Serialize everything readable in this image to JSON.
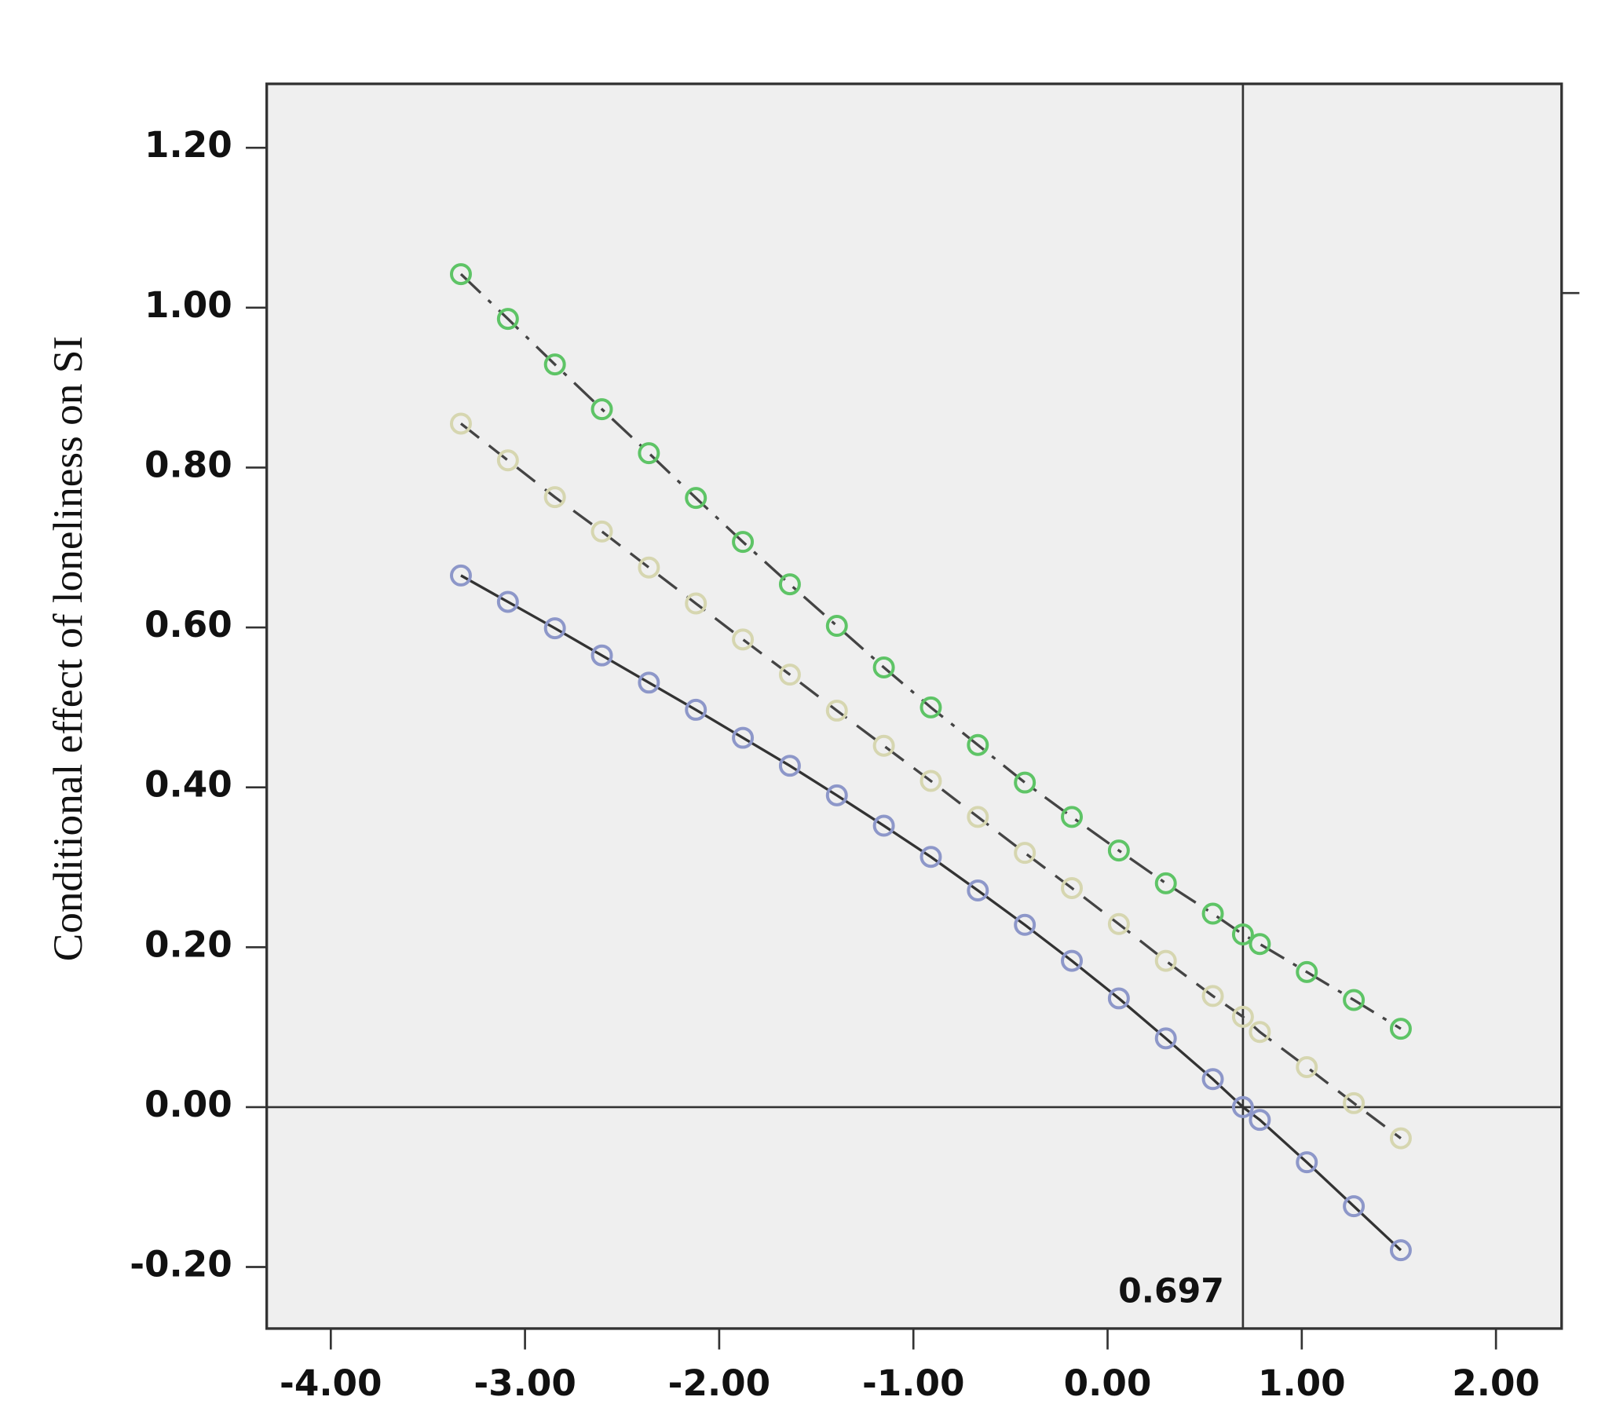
{
  "chart_data": {
    "type": "line",
    "y_label": "Conditional effect of loneliness on SI",
    "x": [
      -3.33,
      -3.088,
      -2.846,
      -2.604,
      -2.362,
      -2.12,
      -1.878,
      -1.636,
      -1.394,
      -1.152,
      -0.91,
      -0.668,
      -0.426,
      -0.184,
      0.058,
      0.3,
      0.542,
      0.697,
      0.784,
      1.026,
      1.268,
      1.51
    ],
    "series": [
      {
        "color": "#8d97c9",
        "line_color": "#333333",
        "dash": "none",
        "values": [
          0.665,
          0.632,
          0.599,
          0.565,
          0.531,
          0.497,
          0.462,
          0.427,
          0.39,
          0.352,
          0.313,
          0.271,
          0.228,
          0.183,
          0.136,
          0.086,
          0.035,
          0,
          -0.016,
          -0.069,
          -0.124,
          -0.179
        ]
      },
      {
        "color": "#d6d6b0",
        "line_color": "#444444",
        "dash": "dashed",
        "values": [
          0.855,
          0.809,
          0.763,
          0.72,
          0.675,
          0.63,
          0.585,
          0.541,
          0.496,
          0.452,
          0.408,
          0.363,
          0.318,
          0.274,
          0.229,
          0.183,
          0.139,
          0.113,
          0.094,
          0.05,
          0.005,
          -0.039
        ]
      },
      {
        "color": "#5ec466",
        "line_color": "#444444",
        "dash": "dashdot",
        "values": [
          1.042,
          0.986,
          0.929,
          0.873,
          0.818,
          0.762,
          0.707,
          0.654,
          0.602,
          0.55,
          0.5,
          0.453,
          0.406,
          0.363,
          0.321,
          0.28,
          0.242,
          0.216,
          0.204,
          0.169,
          0.134,
          0.098
        ]
      }
    ],
    "xlim": [
      -4.33,
      2.338
    ],
    "ylim": [
      -0.277,
      1.28
    ],
    "xticks": [
      {
        "value": -4,
        "label": "-4.00"
      },
      {
        "value": -3,
        "label": "-3.00"
      },
      {
        "value": -2,
        "label": "-2.00"
      },
      {
        "value": -1,
        "label": "-1.00"
      },
      {
        "value": 0,
        "label": "0.00"
      },
      {
        "value": 1,
        "label": "1.00"
      },
      {
        "value": 2,
        "label": "2.00"
      }
    ],
    "yticks": [
      {
        "value": -0.2,
        "label": "-0.20"
      },
      {
        "value": 0,
        "label": "0.00"
      },
      {
        "value": 0.2,
        "label": "0.20"
      },
      {
        "value": 0.4,
        "label": "0.40"
      },
      {
        "value": 0.6,
        "label": "0.60"
      },
      {
        "value": 0.8,
        "label": "0.80"
      },
      {
        "value": 1.0,
        "label": "1.00"
      },
      {
        "value": 1.2,
        "label": "1.20"
      }
    ],
    "vline": 0.697,
    "hline": 0,
    "background": "#efefef"
  }
}
